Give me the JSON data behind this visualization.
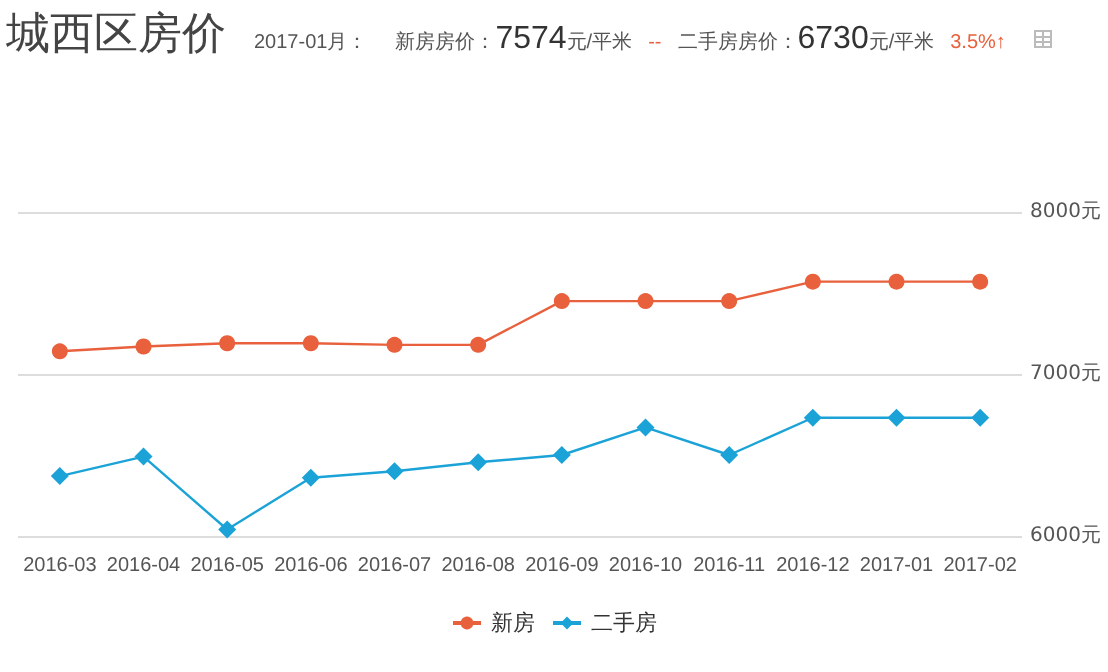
{
  "chart_data": {
    "type": "line",
    "title": "城西区房价",
    "annotations": [
      "2017-01月：",
      "新房房价：",
      "7574",
      "元/平米",
      "--",
      "二手房房价：",
      "6730",
      "元/平米",
      "3.5%↑"
    ],
    "categories": [
      "2016-03",
      "2016-04",
      "2016-05",
      "2016-06",
      "2016-07",
      "2016-08",
      "2016-09",
      "2016-10",
      "2016-11",
      "2016-12",
      "2017-01",
      "2017-02"
    ],
    "series": [
      {
        "name": "新房",
        "color": "#e8603c",
        "marker": "circle",
        "values": [
          7140,
          7170,
          7190,
          7190,
          7180,
          7180,
          7450,
          7450,
          7450,
          7570,
          7570,
          7570
        ]
      },
      {
        "name": "二手房",
        "color": "#1ba3d8",
        "marker": "diamond",
        "values": [
          6370,
          6490,
          6040,
          6360,
          6400,
          6455,
          6500,
          6670,
          6500,
          6730,
          6730,
          6730
        ]
      }
    ],
    "ylim": [
      6000,
      8000
    ],
    "yticks": [
      {
        "value": 6000,
        "label": "6000元"
      },
      {
        "value": 7000,
        "label": "7000元"
      },
      {
        "value": 8000,
        "label": "8000元"
      }
    ],
    "grid": "y",
    "legend": "bottom"
  }
}
